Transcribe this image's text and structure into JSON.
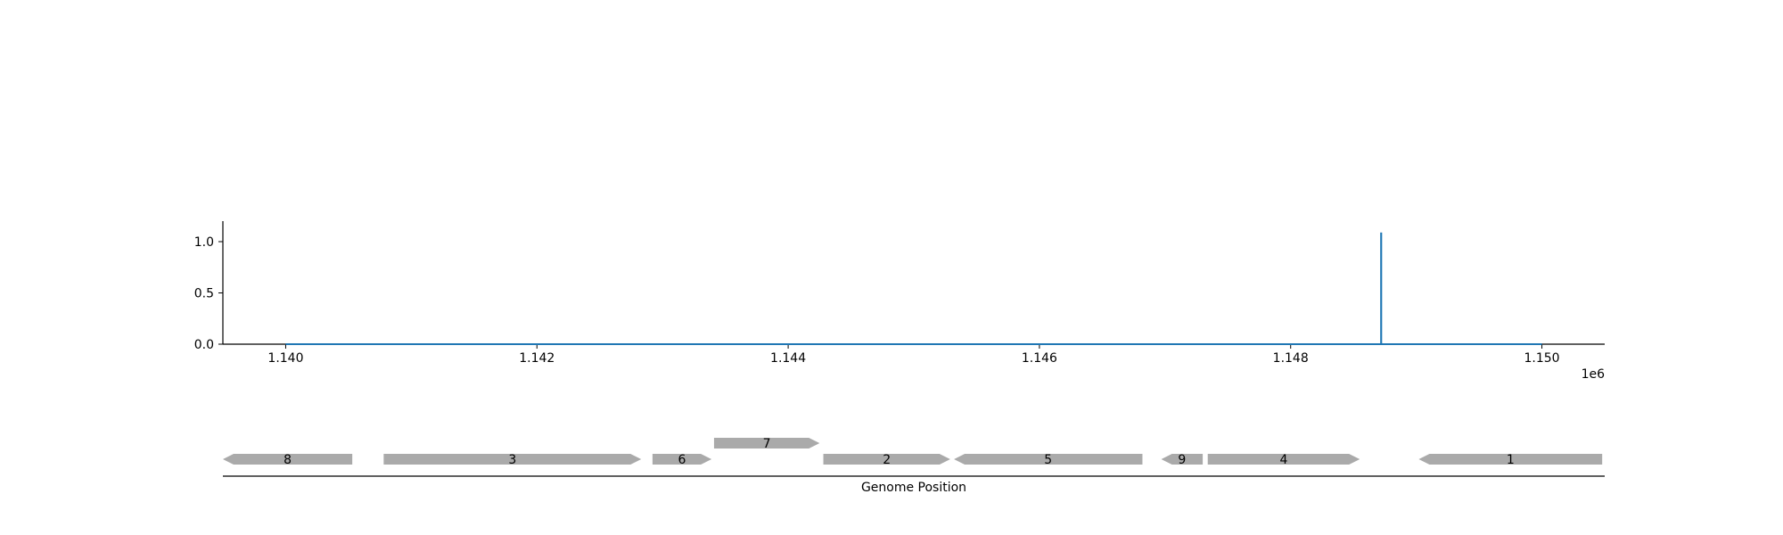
{
  "chart_data": [
    {
      "type": "line",
      "x_range": [
        1139500,
        1150500
      ],
      "ylim": [
        0,
        1.2
      ],
      "y_ticks": [
        {
          "value": 0.0,
          "label": "0.0"
        },
        {
          "value": 0.5,
          "label": "0.5"
        },
        {
          "value": 1.0,
          "label": "1.0"
        }
      ],
      "x_ticks": [
        {
          "value": 1140000,
          "label": "1.140"
        },
        {
          "value": 1142000,
          "label": "1.142"
        },
        {
          "value": 1144000,
          "label": "1.144"
        },
        {
          "value": 1146000,
          "label": "1.146"
        },
        {
          "value": 1148000,
          "label": "1.148"
        },
        {
          "value": 1150000,
          "label": "1.150"
        }
      ],
      "x_offset_label": "1e6",
      "series": [
        {
          "color": "#1f77b4",
          "x": [
            1140000,
            1148720,
            1148720,
            1148721,
            1148721,
            1150000
          ],
          "y": [
            0,
            0,
            1.08,
            1.08,
            0,
            0
          ]
        }
      ],
      "grid": false
    },
    {
      "type": "gene_track",
      "xlabel": "Genome Position",
      "x_range": [
        1139500,
        1150500
      ],
      "gene_color": "#aaaaaa",
      "genes": [
        {
          "label": "8",
          "start": 1139500,
          "end": 1140530,
          "strand": "-",
          "row": 0
        },
        {
          "label": "3",
          "start": 1140780,
          "end": 1142830,
          "strand": "+",
          "row": 0
        },
        {
          "label": "6",
          "start": 1142920,
          "end": 1143390,
          "strand": "+",
          "row": 0
        },
        {
          "label": "7",
          "start": 1143410,
          "end": 1144250,
          "strand": "+",
          "row": 1
        },
        {
          "label": "2",
          "start": 1144280,
          "end": 1145290,
          "strand": "+",
          "row": 0
        },
        {
          "label": "5",
          "start": 1145320,
          "end": 1146820,
          "strand": "-",
          "row": 0
        },
        {
          "label": "9",
          "start": 1146970,
          "end": 1147300,
          "strand": "-",
          "row": 0
        },
        {
          "label": "4",
          "start": 1147340,
          "end": 1148550,
          "strand": "+",
          "row": 0
        },
        {
          "label": "1",
          "start": 1149020,
          "end": 1150480,
          "strand": "-",
          "row": 0
        }
      ]
    }
  ]
}
